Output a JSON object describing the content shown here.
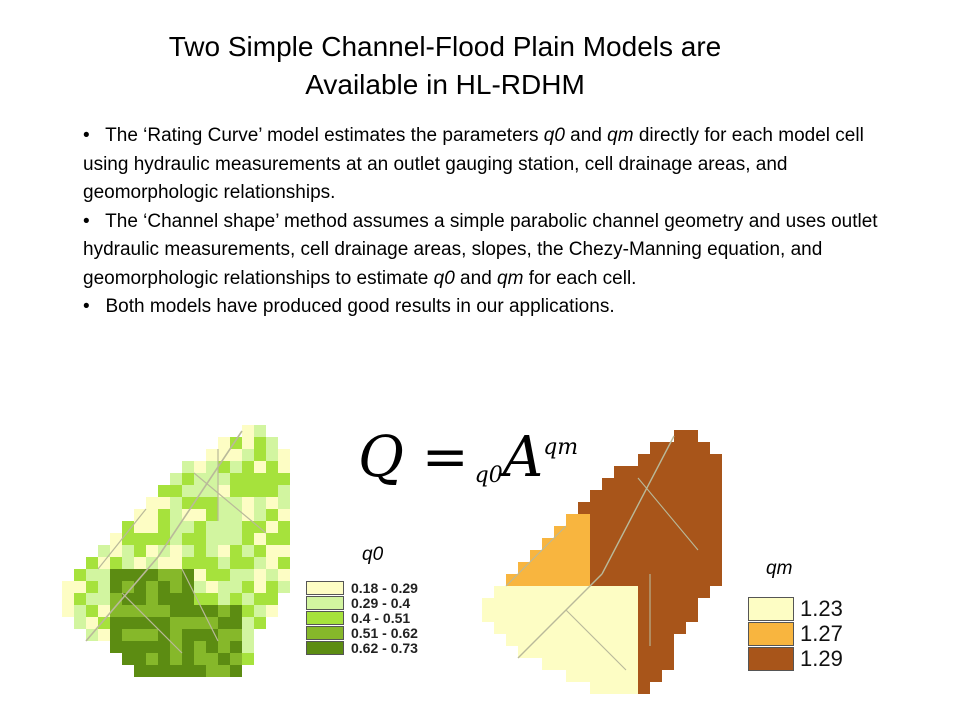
{
  "slide": {
    "title_line1": "Two Simple Channel-Flood Plain Models are",
    "title_line2": "Available in HL-RDHM",
    "bullets": [
      {
        "parts": [
          "The ‘Rating Curve’ model estimates the parameters ",
          "q0",
          " and ",
          "qm",
          " directly for each model cell using hydraulic measurements at an outlet gauging station, cell drainage areas, and geomorphologic relationships."
        ]
      },
      {
        "parts": [
          "The ‘Channel shape’ method assumes a simple parabolic channel geometry and uses outlet hydraulic measurements, cell drainage areas, slopes, the Chezy-Manning equation, and geomorphologic relationships to estimate ",
          "q0",
          " and ",
          "qm",
          " for each cell."
        ]
      },
      {
        "parts": [
          "Both models have produced good results in our applications."
        ]
      }
    ],
    "equation": {
      "lhs": "Q",
      "eq": "=",
      "coef": "q0",
      "var": "A",
      "exp": "qm"
    }
  },
  "map_q0": {
    "legend_title": "q0",
    "classes": [
      {
        "label": "0.18 - 0.29",
        "color": "#fdfdc4"
      },
      {
        "label": "0.29 - 0.4",
        "color": "#d2f5a0"
      },
      {
        "label": "0.4 - 0.51",
        "color": "#a6e23c"
      },
      {
        "label": "0.51 - 0.62",
        "color": "#86b82a"
      },
      {
        "label": "0.62 - 0.73",
        "color": "#5c8c12"
      }
    ]
  },
  "map_qm": {
    "legend_title": "qm",
    "classes": [
      {
        "label": "1.23",
        "color": "#fdfdc4"
      },
      {
        "label": "1.27",
        "color": "#f8b53f"
      },
      {
        "label": "1.29",
        "color": "#a8551a"
      }
    ]
  },
  "colors": {
    "stream_line": "#b9b99a",
    "cell_border": "#777777"
  }
}
